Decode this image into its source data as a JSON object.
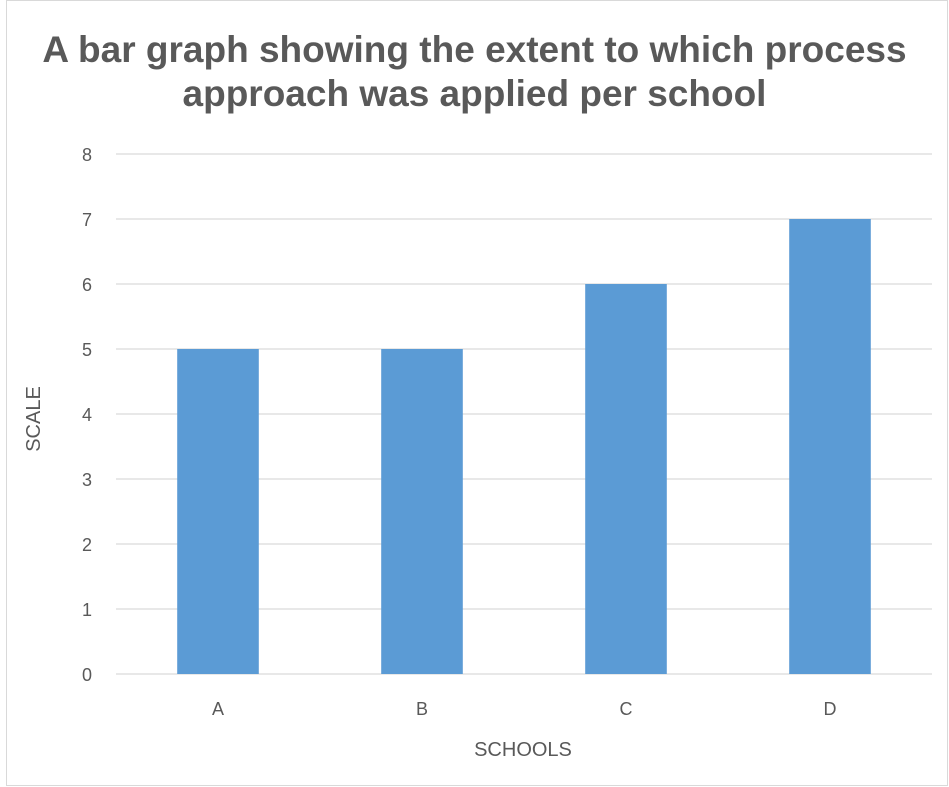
{
  "chart_data": {
    "type": "bar",
    "title_lines": [
      "A bar graph showing the extent to which process",
      "approach was applied per school"
    ],
    "categories": [
      "A",
      "B",
      "C",
      "D"
    ],
    "values": [
      5,
      5,
      6,
      7
    ],
    "xlabel": "SCHOOLS",
    "ylabel": "SCALE",
    "ylim": [
      0,
      8
    ],
    "yticks": [
      0,
      1,
      2,
      3,
      4,
      5,
      6,
      7,
      8
    ],
    "grid": true,
    "legend": "none",
    "colors": {
      "bar": "#5b9bd5",
      "grid": "#d9d9d9",
      "text": "#595959"
    }
  }
}
